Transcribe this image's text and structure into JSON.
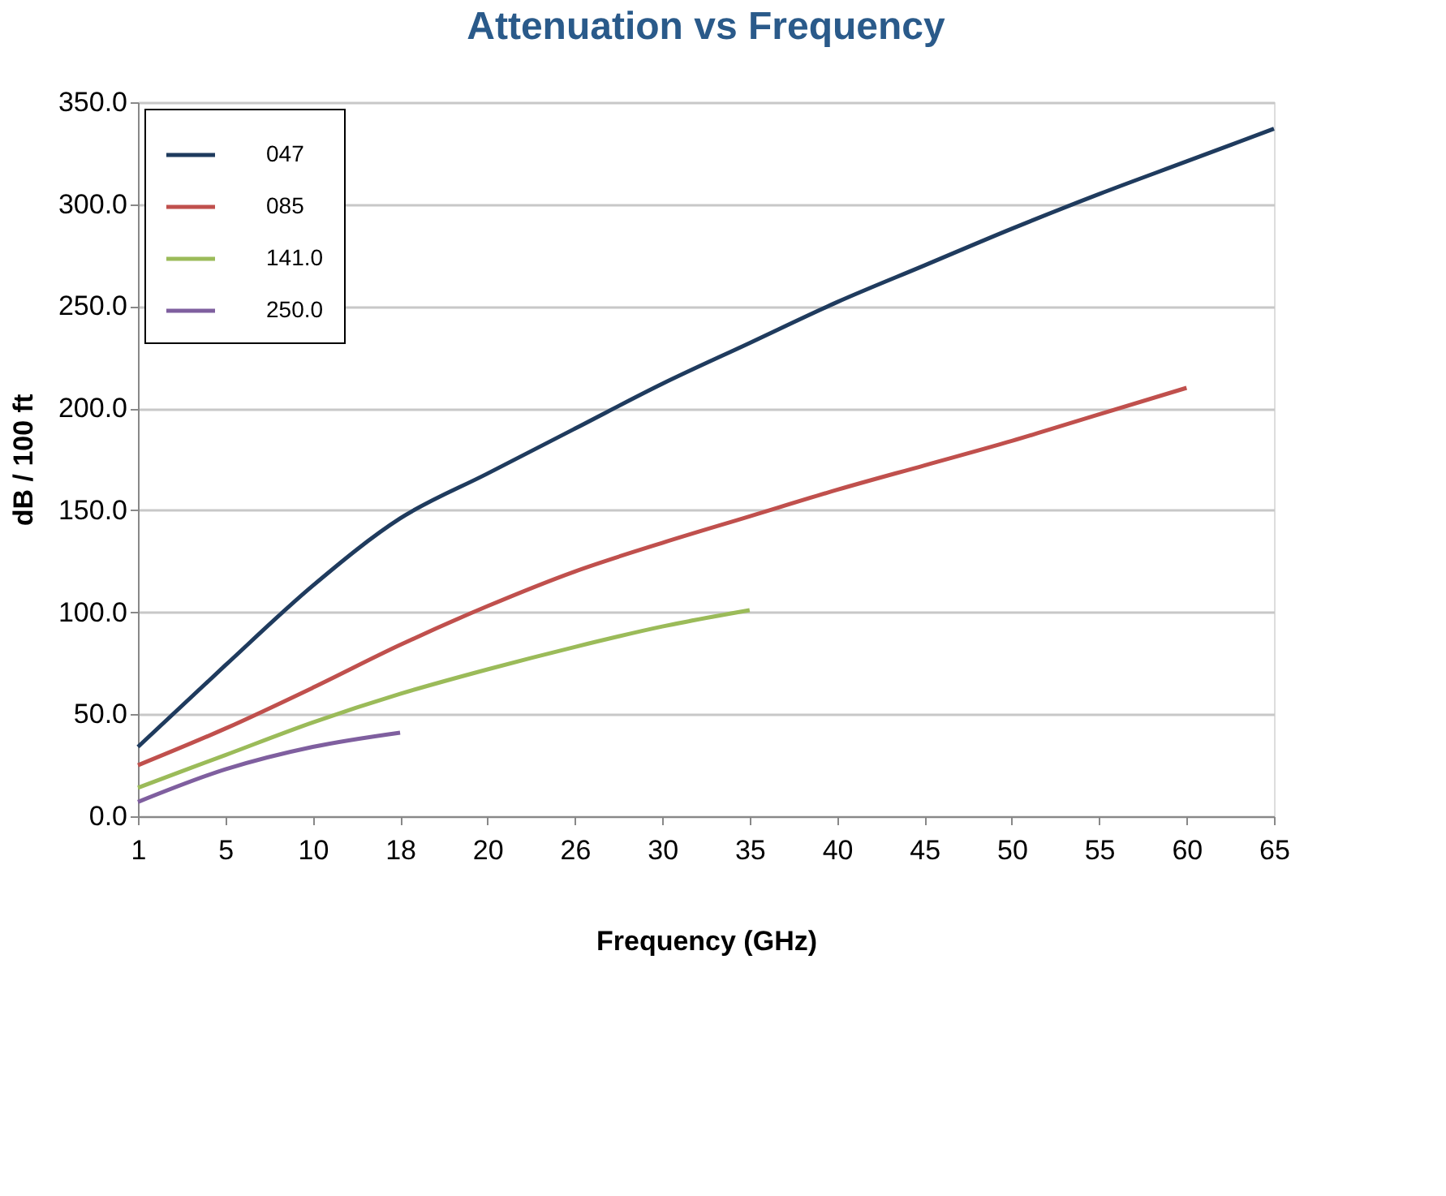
{
  "chart_data": {
    "type": "line",
    "title": "Attenuation vs Frequency",
    "xlabel": "Frequency (GHz)",
    "ylabel": "dB / 100 ft",
    "categories": [
      "1",
      "5",
      "10",
      "18",
      "20",
      "26",
      "30",
      "35",
      "40",
      "45",
      "50",
      "55",
      "60",
      "65"
    ],
    "series": [
      {
        "name": "047",
        "color": "#1f3b5e",
        "values": [
          34,
          74,
          113,
          146,
          168,
          190,
          212,
          232,
          252,
          270,
          288,
          305,
          321,
          337
        ]
      },
      {
        "name": "085",
        "color": "#c0504d",
        "values": [
          25,
          43,
          63,
          84,
          103,
          120,
          134,
          147,
          160,
          172,
          184,
          197,
          210,
          null
        ]
      },
      {
        "name": "141.0",
        "color": "#9bbb59",
        "values": [
          14,
          30,
          46,
          60,
          72,
          83,
          93,
          101,
          null,
          null,
          null,
          null,
          null,
          null
        ]
      },
      {
        "name": "250.0",
        "color": "#7f5f9f",
        "values": [
          7,
          23,
          34,
          41,
          null,
          null,
          null,
          null,
          null,
          null,
          null,
          null,
          null,
          null
        ]
      }
    ],
    "ylim": [
      0,
      350
    ],
    "yticks": [
      {
        "value": 0,
        "label": "0.0"
      },
      {
        "value": 50,
        "label": "50.0"
      },
      {
        "value": 100,
        "label": "100.0"
      },
      {
        "value": 150,
        "label": "150.0"
      },
      {
        "value": 200,
        "label": "200.0"
      },
      {
        "value": 250,
        "label": "250.0"
      },
      {
        "value": 300,
        "label": "300.0"
      },
      {
        "value": 350,
        "label": "350.0"
      }
    ],
    "grid": "y",
    "legend": "top left",
    "marker": "none",
    "line_style": "solid"
  }
}
